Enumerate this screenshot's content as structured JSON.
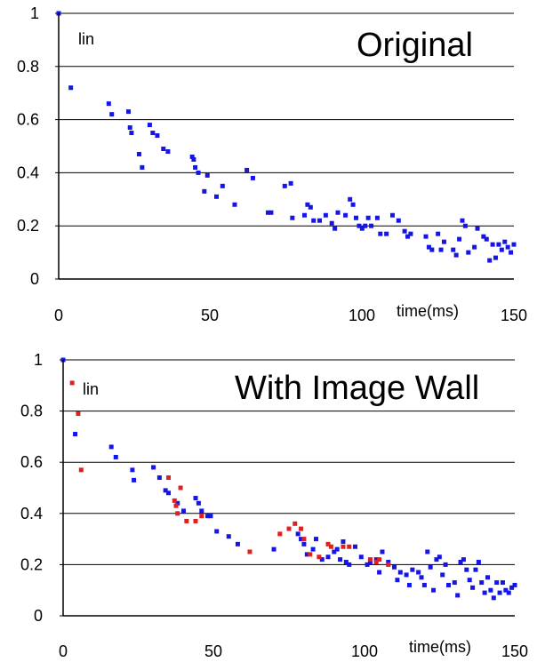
{
  "chart_data": [
    {
      "type": "scatter",
      "title": "Original",
      "annotation": "lin",
      "xlabel": "time(ms)",
      "xlim": [
        0,
        150
      ],
      "ylim": [
        0,
        1
      ],
      "xticks": [
        "0",
        "50",
        "100",
        "150"
      ],
      "yticks": [
        "0",
        "0.2",
        "0.4",
        "0.6",
        "0.8",
        "1"
      ],
      "grid": true,
      "colors": {
        "series": "#1515e6",
        "axis": "#000000"
      },
      "series": [
        {
          "points": [
            [
              0,
              1.0
            ],
            [
              4,
              0.72
            ],
            [
              16.5,
              0.66
            ],
            [
              17.5,
              0.62
            ],
            [
              23,
              0.63
            ],
            [
              23.5,
              0.57
            ],
            [
              24,
              0.55
            ],
            [
              26.5,
              0.47
            ],
            [
              27.5,
              0.42
            ],
            [
              30,
              0.58
            ],
            [
              31,
              0.55
            ],
            [
              32.5,
              0.54
            ],
            [
              34.5,
              0.49
            ],
            [
              36,
              0.48
            ],
            [
              44,
              0.46
            ],
            [
              44.5,
              0.45
            ],
            [
              45,
              0.42
            ],
            [
              46,
              0.4
            ],
            [
              48,
              0.33
            ],
            [
              49,
              0.39
            ],
            [
              52,
              0.31
            ],
            [
              54,
              0.35
            ],
            [
              58,
              0.28
            ],
            [
              62,
              0.41
            ],
            [
              64,
              0.38
            ],
            [
              69,
              0.25
            ],
            [
              70,
              0.25
            ],
            [
              74.5,
              0.35
            ],
            [
              76.5,
              0.36
            ],
            [
              77,
              0.23
            ],
            [
              81,
              0.24
            ],
            [
              82,
              0.28
            ],
            [
              83,
              0.27
            ],
            [
              84,
              0.22
            ],
            [
              86,
              0.22
            ],
            [
              88,
              0.24
            ],
            [
              90,
              0.21
            ],
            [
              91,
              0.19
            ],
            [
              92,
              0.25
            ],
            [
              94.5,
              0.24
            ],
            [
              96,
              0.3
            ],
            [
              97,
              0.28
            ],
            [
              98,
              0.23
            ],
            [
              99,
              0.2
            ],
            [
              100,
              0.19
            ],
            [
              101,
              0.2
            ],
            [
              102,
              0.23
            ],
            [
              103,
              0.2
            ],
            [
              105,
              0.23
            ],
            [
              106,
              0.17
            ],
            [
              108,
              0.17
            ],
            [
              110,
              0.24
            ],
            [
              112,
              0.22
            ],
            [
              114,
              0.18
            ],
            [
              115,
              0.16
            ],
            [
              116,
              0.17
            ],
            [
              121,
              0.16
            ],
            [
              122,
              0.12
            ],
            [
              123,
              0.11
            ],
            [
              125,
              0.17
            ],
            [
              126,
              0.11
            ],
            [
              127,
              0.14
            ],
            [
              130,
              0.11
            ],
            [
              131,
              0.09
            ],
            [
              132,
              0.15
            ],
            [
              133,
              0.22
            ],
            [
              134,
              0.2
            ],
            [
              135,
              0.1
            ],
            [
              137,
              0.12
            ],
            [
              138,
              0.19
            ],
            [
              140,
              0.16
            ],
            [
              141,
              0.15
            ],
            [
              142,
              0.07
            ],
            [
              143,
              0.13
            ],
            [
              144,
              0.08
            ],
            [
              145,
              0.13
            ],
            [
              146,
              0.11
            ],
            [
              147,
              0.14
            ],
            [
              148,
              0.12
            ],
            [
              149,
              0.1
            ],
            [
              150,
              0.13
            ]
          ]
        }
      ]
    },
    {
      "type": "scatter",
      "title": "With Image Wall",
      "annotation": "lin",
      "xlabel": "time(ms)",
      "xlim": [
        0,
        150
      ],
      "ylim": [
        0,
        1
      ],
      "xticks": [
        "0",
        "50",
        "100",
        "150"
      ],
      "yticks": [
        "0",
        "0.2",
        "0.4",
        "0.6",
        "0.8",
        "1"
      ],
      "grid": true,
      "colors": {
        "series_a": "#1515e6",
        "series_b": "#e02020",
        "axis": "#000000"
      },
      "series": [
        {
          "color": "#1515e6",
          "points": [
            [
              0,
              1.0
            ],
            [
              4,
              0.71
            ],
            [
              16,
              0.66
            ],
            [
              17.5,
              0.62
            ],
            [
              23,
              0.57
            ],
            [
              23.5,
              0.53
            ],
            [
              30,
              0.58
            ],
            [
              32,
              0.54
            ],
            [
              34,
              0.49
            ],
            [
              35,
              0.48
            ],
            [
              38,
              0.44
            ],
            [
              40,
              0.41
            ],
            [
              44,
              0.46
            ],
            [
              45,
              0.44
            ],
            [
              46,
              0.41
            ],
            [
              48,
              0.39
            ],
            [
              49,
              0.39
            ],
            [
              51,
              0.33
            ],
            [
              55,
              0.31
            ],
            [
              58,
              0.28
            ],
            [
              70,
              0.26
            ],
            [
              78,
              0.32
            ],
            [
              79,
              0.3
            ],
            [
              80,
              0.28
            ],
            [
              81,
              0.24
            ],
            [
              83,
              0.26
            ],
            [
              84,
              0.3
            ],
            [
              86,
              0.22
            ],
            [
              88,
              0.23
            ],
            [
              90,
              0.25
            ],
            [
              91,
              0.26
            ],
            [
              92,
              0.22
            ],
            [
              93,
              0.29
            ],
            [
              94,
              0.21
            ],
            [
              95,
              0.2
            ],
            [
              97,
              0.27
            ],
            [
              99,
              0.23
            ],
            [
              101,
              0.2
            ],
            [
              102,
              0.21
            ],
            [
              104,
              0.22
            ],
            [
              105,
              0.17
            ],
            [
              106,
              0.25
            ],
            [
              108,
              0.21
            ],
            [
              110,
              0.19
            ],
            [
              111,
              0.14
            ],
            [
              112,
              0.17
            ],
            [
              114,
              0.16
            ],
            [
              115,
              0.12
            ],
            [
              116,
              0.18
            ],
            [
              118,
              0.17
            ],
            [
              119,
              0.15
            ],
            [
              120,
              0.12
            ],
            [
              121,
              0.25
            ],
            [
              122,
              0.19
            ],
            [
              123,
              0.1
            ],
            [
              124,
              0.22
            ],
            [
              125,
              0.23
            ],
            [
              126,
              0.16
            ],
            [
              127,
              0.2
            ],
            [
              128,
              0.12
            ],
            [
              130,
              0.13
            ],
            [
              131,
              0.08
            ],
            [
              132,
              0.21
            ],
            [
              133,
              0.22
            ],
            [
              134,
              0.18
            ],
            [
              135,
              0.14
            ],
            [
              136,
              0.11
            ],
            [
              137,
              0.18
            ],
            [
              138,
              0.21
            ],
            [
              139,
              0.13
            ],
            [
              140,
              0.09
            ],
            [
              141,
              0.15
            ],
            [
              142,
              0.1
            ],
            [
              143,
              0.07
            ],
            [
              144,
              0.13
            ],
            [
              145,
              0.09
            ],
            [
              146,
              0.13
            ],
            [
              147,
              0.1
            ],
            [
              148,
              0.09
            ],
            [
              149,
              0.11
            ],
            [
              150,
              0.12
            ]
          ]
        },
        {
          "color": "#e02020",
          "points": [
            [
              3,
              0.91
            ],
            [
              5,
              0.79
            ],
            [
              6,
              0.57
            ],
            [
              35,
              0.54
            ],
            [
              37,
              0.45
            ],
            [
              37.5,
              0.43
            ],
            [
              38,
              0.4
            ],
            [
              39,
              0.5
            ],
            [
              41,
              0.37
            ],
            [
              44,
              0.37
            ],
            [
              46,
              0.39
            ],
            [
              62,
              0.25
            ],
            [
              72,
              0.32
            ],
            [
              75,
              0.34
            ],
            [
              77,
              0.36
            ],
            [
              79,
              0.34
            ],
            [
              80,
              0.3
            ],
            [
              82,
              0.24
            ],
            [
              85,
              0.23
            ],
            [
              88,
              0.28
            ],
            [
              89,
              0.27
            ],
            [
              93,
              0.27
            ],
            [
              95,
              0.27
            ],
            [
              102,
              0.22
            ],
            [
              104,
              0.21
            ],
            [
              105,
              0.22
            ],
            [
              108,
              0.2
            ]
          ]
        }
      ]
    }
  ]
}
